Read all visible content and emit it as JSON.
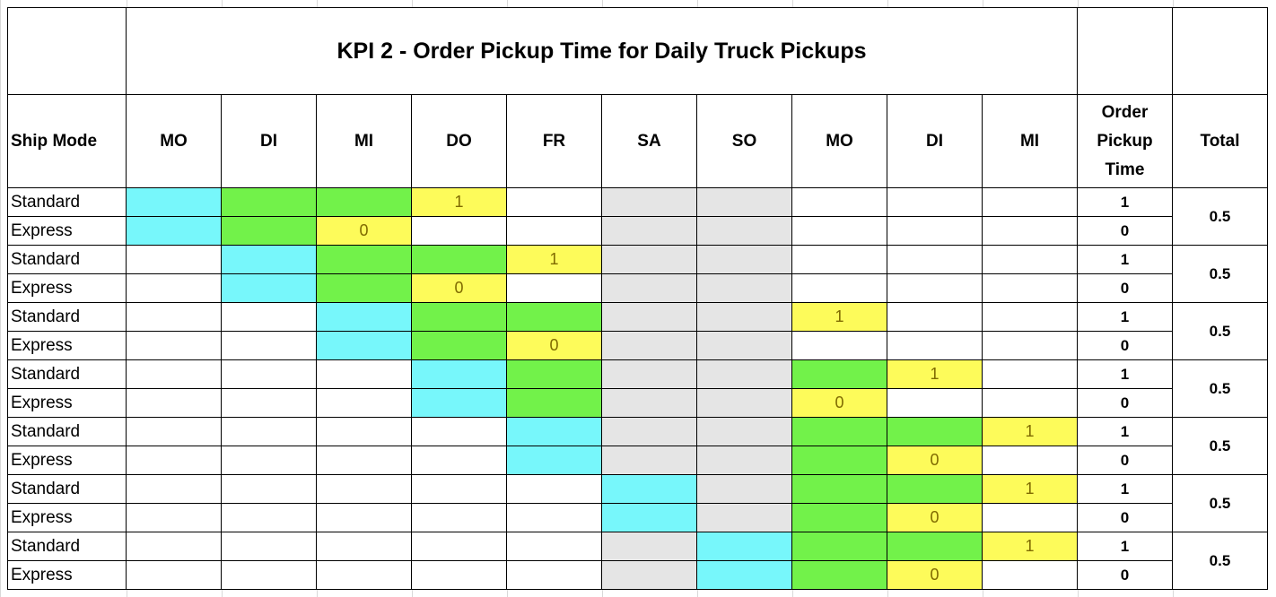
{
  "title": "KPI 2 - Order Pickup Time for Daily Truck Pickups",
  "colors": {
    "cyan": "#77f7fb",
    "green": "#72f24a",
    "yellow": "#fdfb5a",
    "gray": "#e5e5e5",
    "white": "#ffffff"
  },
  "headers": {
    "ship_mode": "Ship Mode",
    "days": [
      "MO",
      "DI",
      "MI",
      "DO",
      "FR",
      "SA",
      "SO",
      "MO",
      "DI",
      "MI"
    ],
    "order_pickup_time": [
      "Order",
      "Pickup",
      "Time"
    ],
    "total": "Total"
  },
  "rows": [
    {
      "mode": "Standard",
      "cells": [
        "c",
        "g",
        "g",
        "y",
        "w",
        "s",
        "s",
        "w",
        "w",
        "w"
      ],
      "value_col": 3,
      "value": "1",
      "pickup": "1"
    },
    {
      "mode": "Express",
      "cells": [
        "c",
        "g",
        "y",
        "w",
        "w",
        "s",
        "s",
        "w",
        "w",
        "w"
      ],
      "value_col": 2,
      "value": "0",
      "pickup": "0"
    },
    {
      "mode": "Standard",
      "cells": [
        "w",
        "c",
        "g",
        "g",
        "y",
        "s",
        "s",
        "w",
        "w",
        "w"
      ],
      "value_col": 4,
      "value": "1",
      "pickup": "1"
    },
    {
      "mode": "Express",
      "cells": [
        "w",
        "c",
        "g",
        "y",
        "w",
        "s",
        "s",
        "w",
        "w",
        "w"
      ],
      "value_col": 3,
      "value": "0",
      "pickup": "0"
    },
    {
      "mode": "Standard",
      "cells": [
        "w",
        "w",
        "c",
        "g",
        "g",
        "s",
        "s",
        "y",
        "w",
        "w"
      ],
      "value_col": 7,
      "value": "1",
      "pickup": "1"
    },
    {
      "mode": "Express",
      "cells": [
        "w",
        "w",
        "c",
        "g",
        "y",
        "s",
        "s",
        "w",
        "w",
        "w"
      ],
      "value_col": 4,
      "value": "0",
      "pickup": "0"
    },
    {
      "mode": "Standard",
      "cells": [
        "w",
        "w",
        "w",
        "c",
        "g",
        "s",
        "s",
        "g",
        "y",
        "w"
      ],
      "value_col": 8,
      "value": "1",
      "pickup": "1"
    },
    {
      "mode": "Express",
      "cells": [
        "w",
        "w",
        "w",
        "c",
        "g",
        "s",
        "s",
        "y",
        "w",
        "w"
      ],
      "value_col": 7,
      "value": "0",
      "pickup": "0"
    },
    {
      "mode": "Standard",
      "cells": [
        "w",
        "w",
        "w",
        "w",
        "c",
        "s",
        "s",
        "g",
        "g",
        "y"
      ],
      "value_col": 9,
      "value": "1",
      "pickup": "1"
    },
    {
      "mode": "Express",
      "cells": [
        "w",
        "w",
        "w",
        "w",
        "c",
        "s",
        "s",
        "g",
        "y",
        "w"
      ],
      "value_col": 8,
      "value": "0",
      "pickup": "0"
    },
    {
      "mode": "Standard",
      "cells": [
        "w",
        "w",
        "w",
        "w",
        "w",
        "c",
        "s",
        "g",
        "g",
        "y"
      ],
      "value_col": 9,
      "value": "1",
      "pickup": "1"
    },
    {
      "mode": "Express",
      "cells": [
        "w",
        "w",
        "w",
        "w",
        "w",
        "c",
        "s",
        "g",
        "y",
        "w"
      ],
      "value_col": 8,
      "value": "0",
      "pickup": "0"
    },
    {
      "mode": "Standard",
      "cells": [
        "w",
        "w",
        "w",
        "w",
        "w",
        "s",
        "c",
        "g",
        "g",
        "y"
      ],
      "value_col": 9,
      "value": "1",
      "pickup": "1"
    },
    {
      "mode": "Express",
      "cells": [
        "w",
        "w",
        "w",
        "w",
        "w",
        "s",
        "c",
        "g",
        "y",
        "w"
      ],
      "value_col": 8,
      "value": "0",
      "pickup": "0"
    }
  ],
  "totals": [
    "0.5",
    "0.5",
    "0.5",
    "0.5",
    "0.5",
    "0.5",
    "0.5"
  ]
}
